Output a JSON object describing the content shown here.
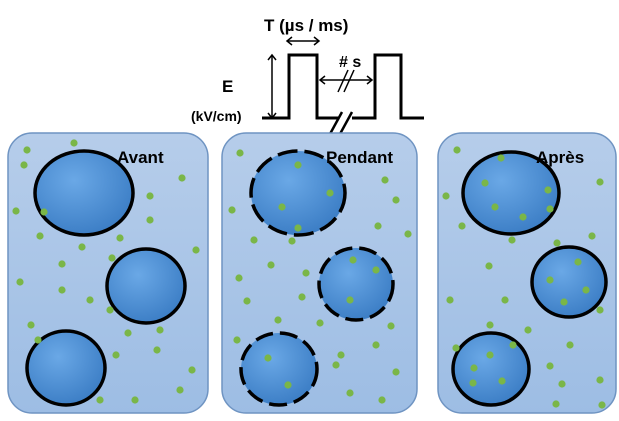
{
  "pulse": {
    "duration_label": "T (µs / ms)",
    "amplitude_label": "E",
    "amplitude_unit": "(kV/cm)",
    "interval_label": "# s"
  },
  "panels": [
    {
      "label": "Avant",
      "membrane": "intact",
      "molecules_inside": false
    },
    {
      "label": "Pendant",
      "membrane": "permeabilized",
      "molecules_inside": true
    },
    {
      "label": "Après",
      "membrane": "resealed",
      "molecules_inside": true
    }
  ],
  "colors": {
    "medium": "#a8c4e6",
    "medium_border": "#6f94c2",
    "cell": "#4a8ed3",
    "cell_outline": "#000000",
    "molecule": "#7ab648"
  }
}
